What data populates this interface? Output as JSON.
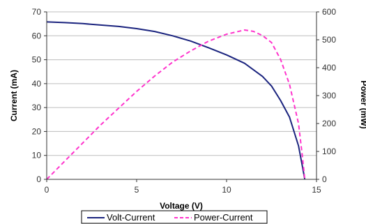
{
  "chart_data": {
    "type": "line",
    "xlabel": "Voltage (V)",
    "ylabel": "Current (mA)",
    "y2label": "Power (mW)",
    "xlim": [
      0,
      15
    ],
    "ylim": [
      0,
      70
    ],
    "y2lim": [
      0,
      600
    ],
    "xticks": [
      "0",
      "5",
      "10",
      "15"
    ],
    "yticks": [
      "0",
      "10",
      "20",
      "30",
      "40",
      "50",
      "60",
      "70"
    ],
    "y2ticks": [
      "0",
      "100",
      "200",
      "300",
      "400",
      "500",
      "600"
    ],
    "grid": "horizontal",
    "legend_position": "bottom",
    "series": [
      {
        "name": "Volt-Current",
        "axis": "left",
        "color": "#1a237e",
        "style": "solid",
        "x": [
          0,
          1,
          2,
          3,
          4,
          5,
          6,
          7,
          8,
          9,
          10,
          11,
          12,
          12.5,
          13,
          13.5,
          14,
          14.2,
          14.35
        ],
        "y": [
          65.8,
          65.5,
          65.1,
          64.5,
          63.9,
          63.0,
          61.8,
          60.0,
          57.8,
          55.0,
          52.0,
          48.5,
          43.0,
          39.0,
          33.0,
          26.0,
          14.0,
          6.0,
          0
        ]
      },
      {
        "name": "Power-Current",
        "axis": "right",
        "color": "#ff33cc",
        "style": "dashed",
        "x": [
          0,
          1,
          2,
          3,
          4,
          5,
          6,
          7,
          8,
          9,
          10,
          11,
          11.5,
          12,
          12.5,
          13,
          13.5,
          14,
          14.2,
          14.35
        ],
        "y": [
          0,
          65,
          130,
          195,
          255,
          315,
          370,
          420,
          460,
          495,
          520,
          535,
          530,
          515,
          490,
          430,
          340,
          200,
          90,
          0
        ]
      }
    ]
  },
  "legend": {
    "items": [
      "Volt-Current",
      "Power-Current"
    ]
  }
}
